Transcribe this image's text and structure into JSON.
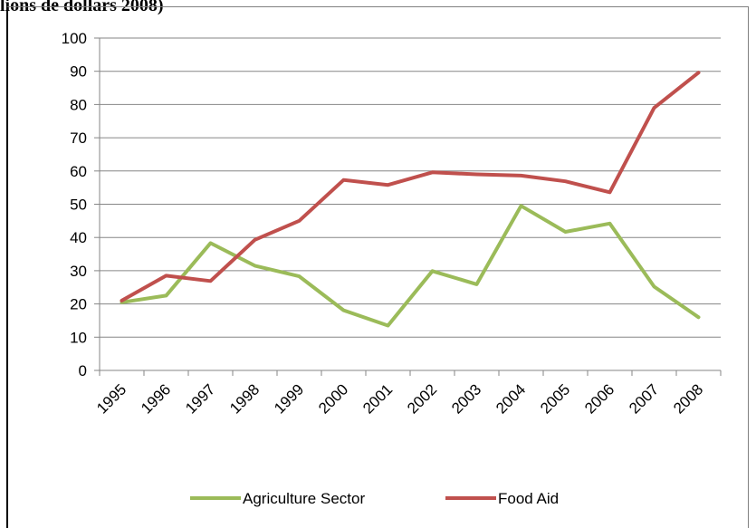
{
  "page_title": "lions de dollars 2008)",
  "chart_data": {
    "type": "line",
    "title": "",
    "xlabel": "",
    "ylabel": "",
    "categories": [
      "1995",
      "1996",
      "1997",
      "1998",
      "1999",
      "2000",
      "2001",
      "2002",
      "2003",
      "2004",
      "2005",
      "2006",
      "2007",
      "2008"
    ],
    "ylim": [
      0,
      100
    ],
    "yticks": [
      0,
      10,
      20,
      30,
      40,
      50,
      60,
      70,
      80,
      90,
      100
    ],
    "ytick_labels": [
      "0",
      "10",
      "20",
      "30",
      "40",
      "50",
      "60",
      "70",
      "80",
      "90",
      "100"
    ],
    "grid": true,
    "legend_position": "bottom",
    "series": [
      {
        "name": "Agriculture Sector",
        "color": "#9bbb59",
        "values": [
          20.5,
          22.5,
          38.3,
          31.5,
          28.3,
          18.1,
          13.5,
          29.9,
          25.9,
          49.5,
          41.7,
          44.2,
          25.2,
          16.0
        ]
      },
      {
        "name": "Food Aid",
        "color": "#c0504d",
        "values": [
          21.0,
          28.5,
          26.9,
          39.3,
          45.0,
          57.3,
          55.8,
          59.6,
          59.0,
          58.6,
          56.9,
          53.6,
          79.0,
          89.6
        ]
      }
    ]
  }
}
